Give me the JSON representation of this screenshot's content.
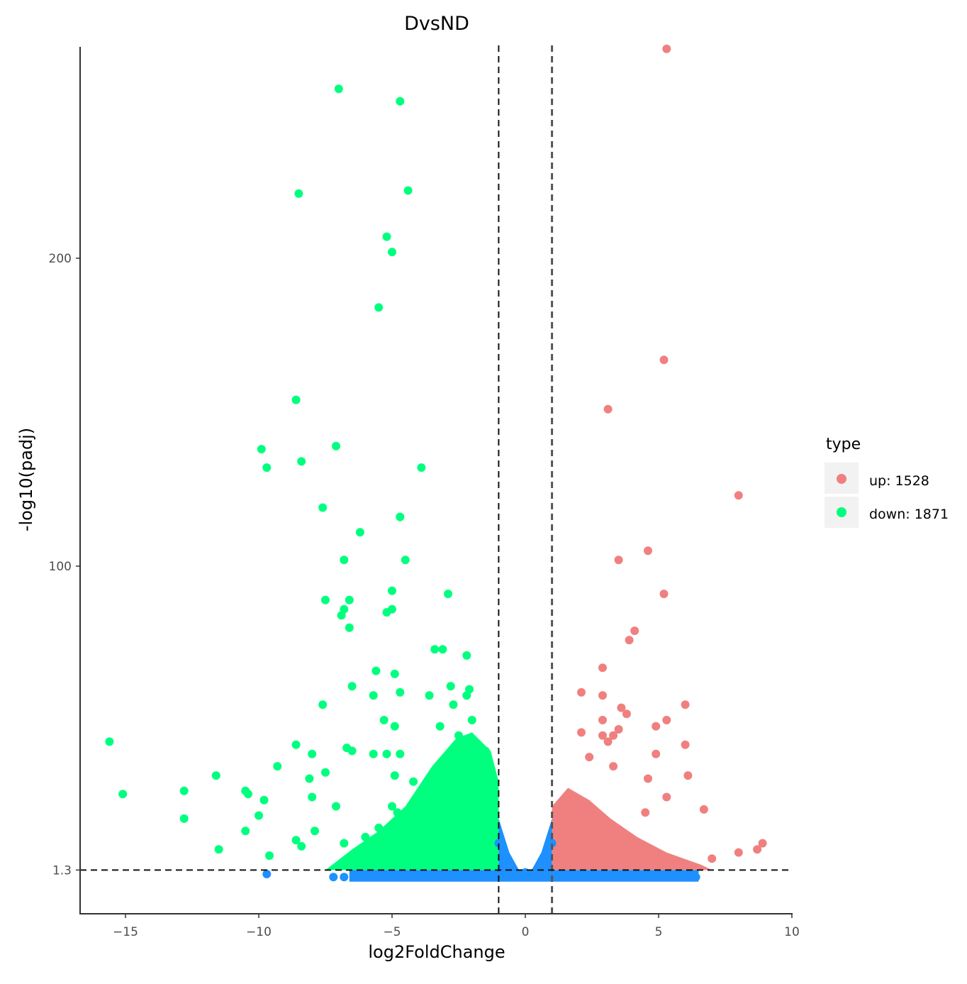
{
  "chart_data": {
    "type": "scatter",
    "title": "DvsND",
    "xlabel": "log2FoldChange",
    "ylabel": "-log10(padj)",
    "xlim": [
      -16.8,
      10
    ],
    "ylim": [
      -13,
      268
    ],
    "x_ticks": [
      -15,
      -10,
      -5,
      0,
      5,
      10
    ],
    "x_tick_labels": [
      "−15",
      "−10",
      "−5",
      "0",
      "5",
      "10"
    ],
    "y_ticks": [
      1.3,
      100,
      200
    ],
    "y_tick_labels": [
      "1.3",
      "100",
      "200"
    ],
    "grid": false,
    "thresholds": {
      "vlines": [
        -1,
        1
      ],
      "hline": 1.3
    },
    "legend": {
      "title": "type",
      "placement": "right",
      "entries": [
        {
          "label": "up: 1528",
          "color": "#F08080"
        },
        {
          "label": "down: 1871",
          "color": "#00FF7F"
        }
      ]
    },
    "colors": {
      "up": "#F08080",
      "down": "#00FF7F",
      "normal": "#1E90FF"
    },
    "series": [
      {
        "name": "up: 1528",
        "color": "#F08080",
        "points": [
          [
            5.3,
            268
          ],
          [
            5.2,
            167
          ],
          [
            3.1,
            151
          ],
          [
            8.0,
            123
          ],
          [
            4.6,
            105
          ],
          [
            3.5,
            102
          ],
          [
            5.2,
            91
          ],
          [
            4.1,
            79
          ],
          [
            3.9,
            76
          ],
          [
            2.9,
            67
          ],
          [
            2.1,
            59
          ],
          [
            2.9,
            58
          ],
          [
            6.0,
            55
          ],
          [
            3.6,
            54
          ],
          [
            3.8,
            52
          ],
          [
            5.3,
            50
          ],
          [
            2.9,
            50
          ],
          [
            2.9,
            45
          ],
          [
            4.9,
            48
          ],
          [
            3.5,
            47
          ],
          [
            2.1,
            46
          ],
          [
            3.3,
            45
          ],
          [
            3.1,
            43
          ],
          [
            2.4,
            38
          ],
          [
            4.9,
            39
          ],
          [
            6.0,
            42
          ],
          [
            3.3,
            35
          ],
          [
            6.1,
            32
          ],
          [
            4.6,
            31
          ],
          [
            6.7,
            21
          ],
          [
            8.9,
            10
          ],
          [
            8.7,
            8
          ],
          [
            8.0,
            7
          ],
          [
            7.0,
            5
          ],
          [
            5.3,
            25
          ],
          [
            4.5,
            20
          ]
        ]
      },
      {
        "name": "down: 1871",
        "color": "#00FF7F",
        "points": [
          [
            -7.0,
            255
          ],
          [
            -4.7,
            251
          ],
          [
            -8.5,
            221
          ],
          [
            -4.4,
            222
          ],
          [
            -5.2,
            207
          ],
          [
            -5.0,
            202
          ],
          [
            -5.5,
            184
          ],
          [
            -8.6,
            154
          ],
          [
            -9.9,
            138
          ],
          [
            -7.1,
            139
          ],
          [
            -8.4,
            134
          ],
          [
            -9.7,
            132
          ],
          [
            -3.9,
            132
          ],
          [
            -7.6,
            119
          ],
          [
            -4.7,
            116
          ],
          [
            -6.2,
            111
          ],
          [
            -4.5,
            102
          ],
          [
            -6.8,
            102
          ],
          [
            -5.0,
            92
          ],
          [
            -2.9,
            91
          ],
          [
            -7.5,
            89
          ],
          [
            -6.6,
            89
          ],
          [
            -6.8,
            86
          ],
          [
            -6.9,
            84
          ],
          [
            -5.2,
            85
          ],
          [
            -5.0,
            86
          ],
          [
            -6.6,
            80
          ],
          [
            -3.4,
            73
          ],
          [
            -3.1,
            73
          ],
          [
            -2.2,
            71
          ],
          [
            -5.6,
            66
          ],
          [
            -4.9,
            65
          ],
          [
            -6.5,
            61
          ],
          [
            -4.7,
            59
          ],
          [
            -3.6,
            58
          ],
          [
            -5.7,
            58
          ],
          [
            -2.1,
            60
          ],
          [
            -2.8,
            61
          ],
          [
            -2.2,
            58
          ],
          [
            -7.6,
            55
          ],
          [
            -5.3,
            50
          ],
          [
            -4.9,
            48
          ],
          [
            -15.6,
            43
          ],
          [
            -8.6,
            42
          ],
          [
            -6.7,
            41
          ],
          [
            -6.5,
            40
          ],
          [
            -8.0,
            39
          ],
          [
            -5.7,
            39
          ],
          [
            -5.2,
            39
          ],
          [
            -4.7,
            39
          ],
          [
            -9.3,
            35
          ],
          [
            -7.5,
            33
          ],
          [
            -11.6,
            32
          ],
          [
            -8.1,
            31
          ],
          [
            -4.9,
            32
          ],
          [
            -15.1,
            26
          ],
          [
            -12.8,
            27
          ],
          [
            -10.5,
            27
          ],
          [
            -10.4,
            26
          ],
          [
            -9.8,
            24
          ],
          [
            -8.0,
            25
          ],
          [
            -7.1,
            22
          ],
          [
            -12.8,
            18
          ],
          [
            -10.0,
            19
          ],
          [
            -11.5,
            8
          ],
          [
            -10.5,
            14
          ],
          [
            -7.9,
            14
          ],
          [
            -8.6,
            11
          ],
          [
            -8.4,
            9
          ],
          [
            -9.6,
            6
          ],
          [
            -6.8,
            10
          ],
          [
            -6.0,
            12
          ],
          [
            -5.5,
            15
          ],
          [
            -4.8,
            20
          ],
          [
            -3.5,
            25
          ],
          [
            -3.0,
            35
          ],
          [
            -2.5,
            45
          ],
          [
            -2.0,
            50
          ],
          [
            -1.5,
            40
          ],
          [
            -1.2,
            30
          ],
          [
            -2.7,
            55
          ],
          [
            -3.2,
            48
          ],
          [
            -4.2,
            30
          ],
          [
            -5.0,
            22
          ]
        ]
      },
      {
        "name": "",
        "color": "#1E90FF",
        "points": [
          [
            -9.7,
            0
          ],
          [
            -7.2,
            -1
          ],
          [
            -6.8,
            -1
          ],
          [
            -6.4,
            -1
          ],
          [
            -6.0,
            -1
          ],
          [
            -5.5,
            -1
          ],
          [
            -4.5,
            -1
          ],
          [
            -3.5,
            -1
          ],
          [
            -2.5,
            -1
          ],
          [
            -1.5,
            -1
          ],
          [
            -1.0,
            10
          ],
          [
            -0.8,
            4
          ],
          [
            -0.5,
            1
          ],
          [
            0.0,
            0.5
          ],
          [
            0.5,
            1
          ],
          [
            0.8,
            4
          ],
          [
            1.0,
            10
          ],
          [
            2.0,
            -1
          ],
          [
            3.0,
            -1
          ],
          [
            4.0,
            -1
          ],
          [
            5.0,
            -1
          ],
          [
            5.5,
            -1
          ],
          [
            6.0,
            -1
          ],
          [
            6.4,
            -1
          ]
        ]
      }
    ]
  }
}
